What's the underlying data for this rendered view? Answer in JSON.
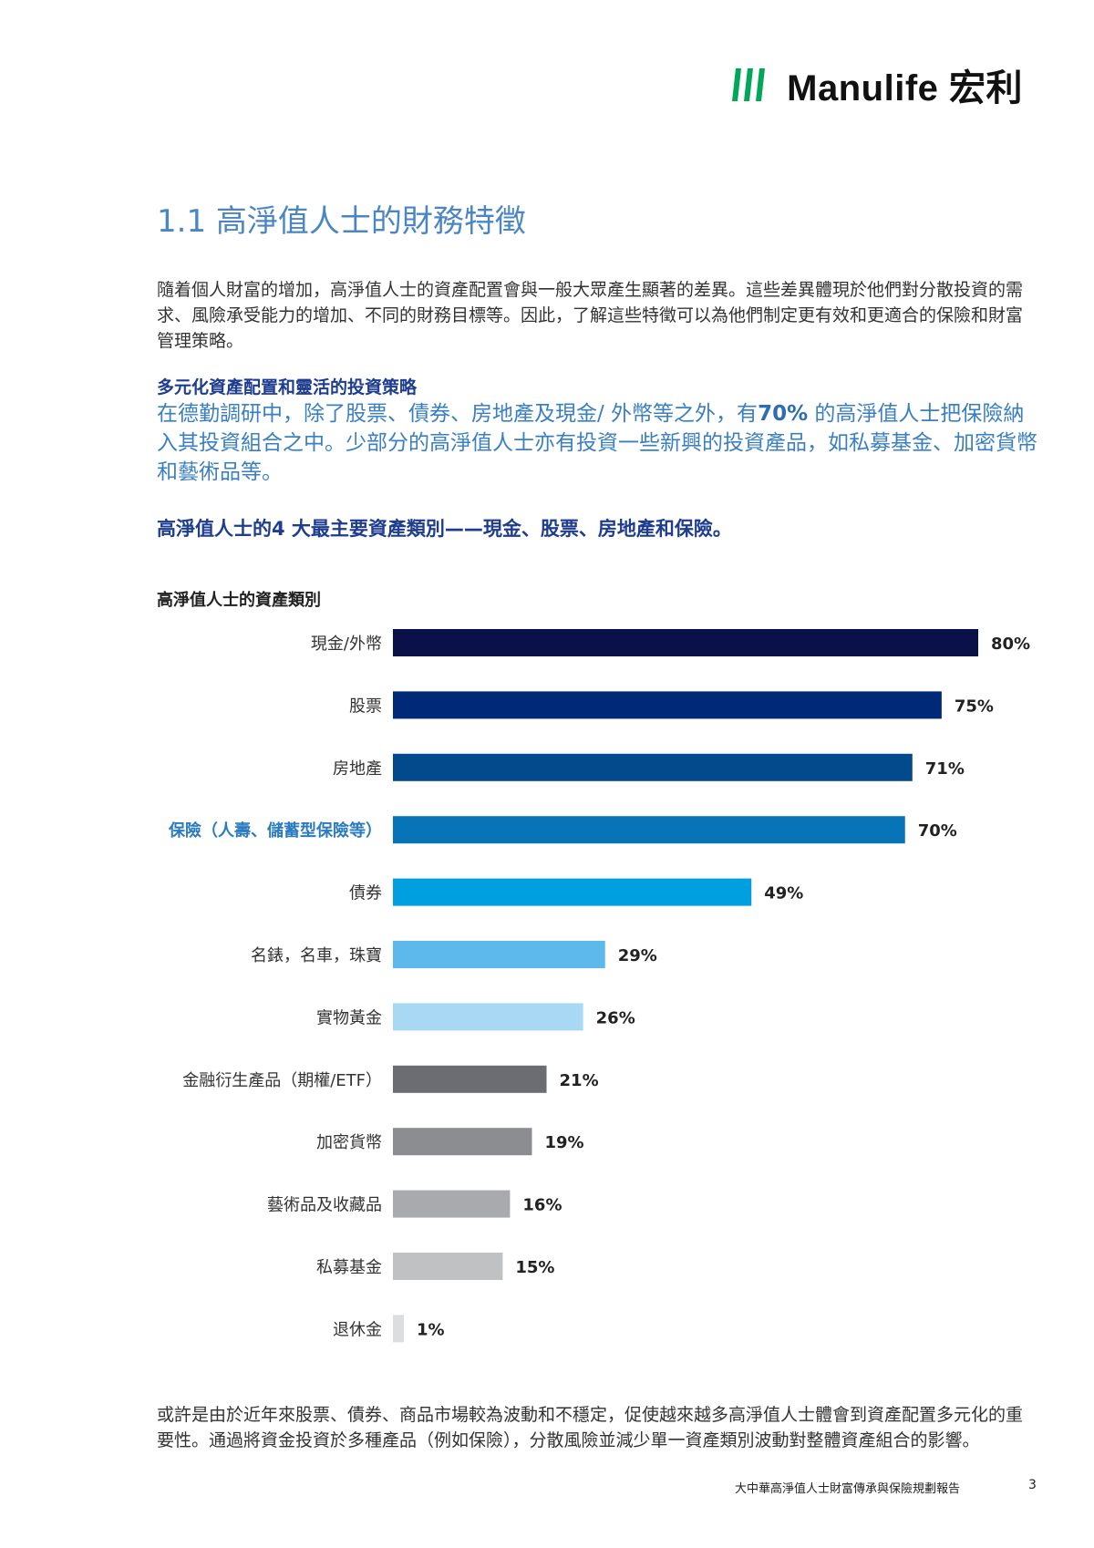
{
  "brand": {
    "name": "Manulife 宏利"
  },
  "section_title": "1.1  高淨值人士的財務特徵",
  "intro_text": "隨着個人財富的增加，高淨值人士的資產配置會與一般大眾產生顯著的差異。這些差異體現於他們對分散投資的需求、風險承受能力的增加、不同的財務目標等。因此，了解這些特徵可以為他們制定更有效和更適合的保險和財富管理策略。",
  "subheading": "多元化資產配置和靈活的投資策略",
  "highlight": {
    "before": "在德勤調研中，除了股票、債券、房地產及現金/ 外幣等之外，有",
    "bold": "70%",
    "after": " 的高淨值人士把保險納入其投資組合之中。少部分的高淨值人士亦有投資一些新興的投資產品，如私募基金、加密貨幣和藝術品等。"
  },
  "callout": "高淨值人士的4 大最主要資產類別——現金、股票、房地產和保險。",
  "chart_title": "高淨值人士的資產類別",
  "chart_data": {
    "type": "bar",
    "orientation": "horizontal",
    "title": "高淨值人士的資產類別",
    "xlim": [
      0,
      80
    ],
    "unit": "%",
    "categories": [
      "現金/外幣",
      "股票",
      "房地產",
      "保險（人壽、儲蓄型保險等）",
      "債券",
      "名錶，名車，珠寶",
      "實物黃金",
      "金融衍生產品（期權/ETF）",
      "加密貨幣",
      "藝術品及收藏品",
      "私募基金",
      "退休金"
    ],
    "values": [
      80,
      75,
      71,
      70,
      49,
      29,
      26,
      21,
      19,
      16,
      15,
      1
    ],
    "value_labels": [
      "80%",
      "75%",
      "71%",
      "70%",
      "49%",
      "29%",
      "26%",
      "21%",
      "19%",
      "16%",
      "15%",
      "1%"
    ],
    "colors": [
      "#0a1048",
      "#002a78",
      "#034a8c",
      "#0874b8",
      "#00a0e0",
      "#5db8eb",
      "#a8d8f3",
      "#6b6d72",
      "#8b8d91",
      "#a8aaad",
      "#bfc1c3",
      "#dcdddf"
    ],
    "highlight_category": "保險（人壽、儲蓄型保險等）",
    "highlight_color": "#2a7bc0"
  },
  "bottom_text": "或許是由於近年來股票、債券、商品市場較為波動和不穩定，促使越來越多高淨值人士體會到資產配置多元化的重要性。通過將資金投資於多種產品（例如保險），分散風險並減少單一資產類別波動對整體資產組合的影響。",
  "footer": {
    "report_title": "大中華高淨值人士財富傳承與保險規劃報告",
    "page_number": "3"
  }
}
